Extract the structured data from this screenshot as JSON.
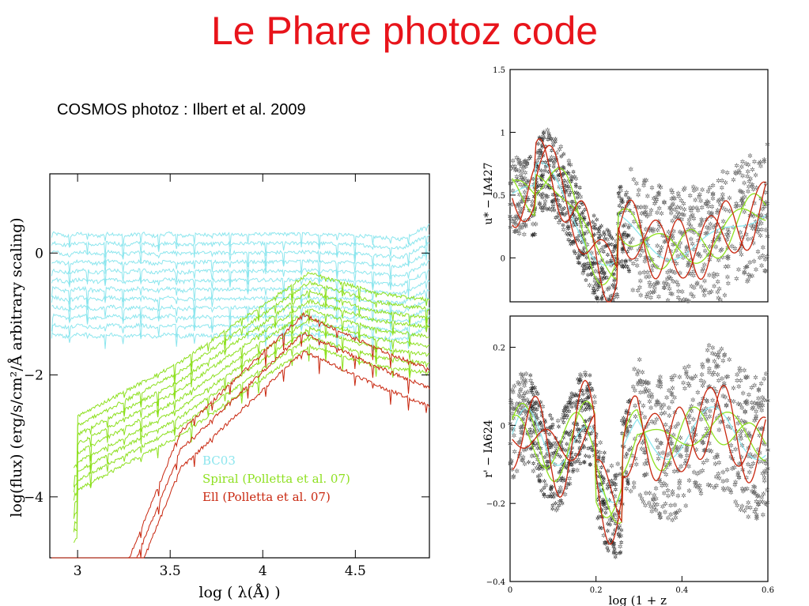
{
  "slide": {
    "title": "Le Phare photoz code",
    "subtitle": "COSMOS photoz : Ilbert et al. 2009"
  },
  "colors": {
    "bc03": "#8de6ee",
    "spiral": "#8ee020",
    "ell": "#c8260e",
    "points": "#000000",
    "title": "#e8141b"
  },
  "chart_data": [
    {
      "type": "line",
      "xlabel": "log ( λ(Å) )",
      "ylabel": "log(flux)  (erg/s/cm²/Å   arbitrary scaling)",
      "xlim": [
        2.85,
        4.9
      ],
      "ylim": [
        -5.0,
        1.3
      ],
      "xticks": [
        "3",
        "3.5",
        "4",
        "4.5"
      ],
      "yticks": [
        "0",
        "−2",
        "−4"
      ],
      "legend": [
        "BC03",
        "Spiral (Polletta et al. 07)",
        "Ell (Polletta et al. 07)"
      ],
      "legend_position": "bottom-right",
      "series": [
        {
          "name": "BC03",
          "color": "#8de6ee",
          "offsets": [
            0.3,
            0.15,
            0.0,
            -0.15,
            -0.3,
            -0.45,
            -0.6,
            -0.75,
            -0.9,
            -1.05,
            -1.2,
            -1.35
          ]
        },
        {
          "name": "Spiral (Polletta et al. 07)",
          "color": "#8ee020",
          "offsets": [
            -0.3,
            -0.45,
            -0.6,
            -0.75,
            -0.9,
            -1.05,
            -1.2,
            -1.35,
            -1.5
          ]
        },
        {
          "name": "Ell (Polletta et al. 07)",
          "color": "#c8260e",
          "offsets": [
            -1.0,
            -1.3,
            -1.6
          ]
        }
      ]
    },
    {
      "type": "scatter",
      "xlabel": "",
      "ylabel": "u* − IA427",
      "xlim": [
        0,
        0.6
      ],
      "ylim": [
        -0.35,
        1.5
      ],
      "yticks": [
        "0",
        "0.5",
        "1",
        "1.5"
      ]
    },
    {
      "type": "scatter",
      "xlabel": "log (1 + z_",
      "ylabel": "r' − IA624",
      "xlim": [
        0,
        0.6
      ],
      "ylim": [
        -0.4,
        0.28
      ],
      "xticks": [
        "0",
        "0.2",
        "0.4",
        "0.6"
      ],
      "yticks": [
        "0.2",
        "0",
        "−0.2",
        "−0.4"
      ]
    }
  ]
}
